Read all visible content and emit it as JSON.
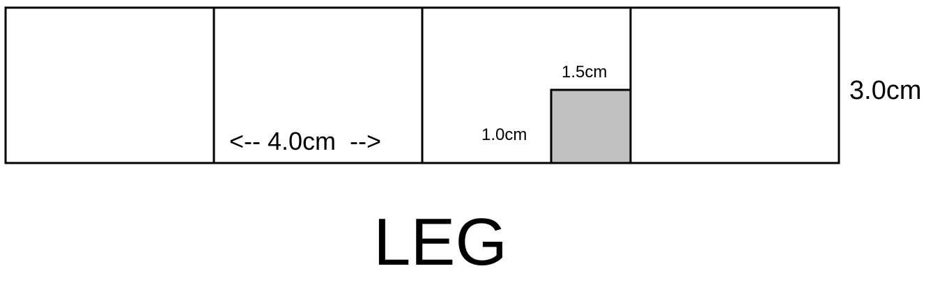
{
  "strip": {
    "cell_count": 4,
    "width_label": "<-- 4.0cm  -->",
    "height_label": "3.0cm"
  },
  "cutout": {
    "top_label": "1.5cm",
    "side_label": "1.0cm",
    "fill_color": "#c0c0c0"
  },
  "title": "LEG"
}
